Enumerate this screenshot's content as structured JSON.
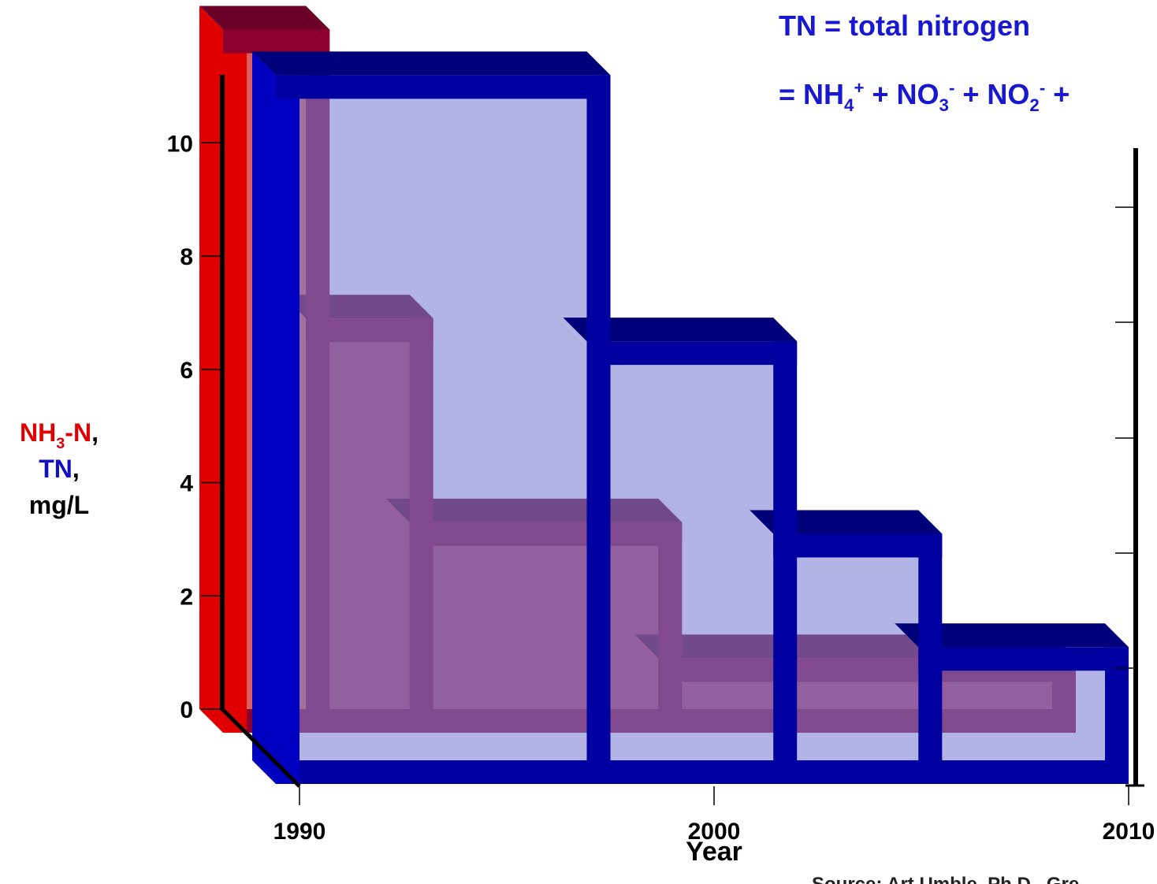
{
  "chart_data": {
    "type": "step3d",
    "note_lines": [
      [
        {
          "text": "TN = total nitrogen"
        }
      ],
      [
        {
          "text": "= NH"
        },
        {
          "text": "4",
          "shift": "sub"
        },
        {
          "text": "+",
          "shift": "sup"
        },
        {
          "text": " + NO"
        },
        {
          "text": "3",
          "shift": "sub"
        },
        {
          "text": "-",
          "shift": "sup"
        },
        {
          "text": " + NO"
        },
        {
          "text": "2",
          "shift": "sub"
        },
        {
          "text": "-",
          "shift": "sup"
        },
        {
          "text": " +"
        }
      ]
    ],
    "y_label": [
      [
        {
          "text": "NH",
          "color": "#e00000"
        },
        {
          "text": "3",
          "color": "#e00000",
          "shift": "sub"
        },
        {
          "text": "-N",
          "color": "#e00000"
        },
        {
          "text": ","
        }
      ],
      [
        {
          "text": "TN",
          "color": "#1010c0"
        },
        {
          "text": ","
        }
      ],
      [
        {
          "text": "mg/L"
        }
      ]
    ],
    "x_label": "Year",
    "source": "Source: Art Umble, Ph.D., Gre",
    "xlim": [
      1990,
      2010
    ],
    "xticks": [
      1990,
      2000,
      2010
    ],
    "ylim": [
      0,
      11.2
    ],
    "yticks": [
      0,
      2,
      4,
      6,
      8,
      10
    ],
    "series": [
      {
        "color": "#8c0030",
        "bins": [
          1990,
          1992,
          1994.5,
          2000.5,
          2010
        ],
        "values": [
          12.0,
          6.9,
          3.3,
          0.9
        ]
      },
      {
        "color": "#0000a0",
        "bins": [
          1990,
          1997.5,
          2002,
          2005.5,
          2010
        ],
        "values": [
          12.1,
          7.4,
          4.0,
          2.0
        ]
      }
    ]
  }
}
